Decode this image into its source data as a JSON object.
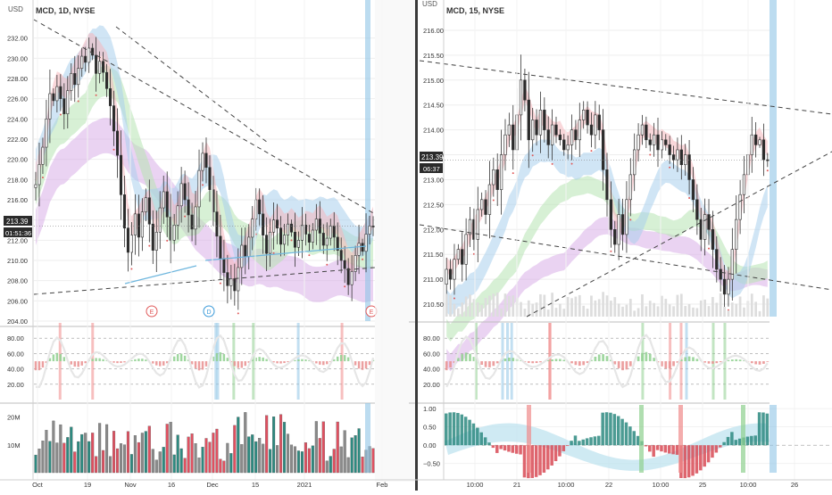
{
  "colors": {
    "background": "#ffffff",
    "divider": "#3a3a3a",
    "grid": "#eeeeee",
    "axis_text": "#333333",
    "price_label": "#2b2b2b",
    "price_label_text": "#ffffff",
    "bull": "#f4f4f4",
    "bear": "#2a2a2a",
    "band_blue": "#aad0ec",
    "band_green": "#b6e3b2",
    "band_purple": "#d8aee8",
    "band_pink": "#f4b6bc",
    "stoch_green": "#8fd08f",
    "stoch_red": "#e98f8f",
    "stoch_white": "#e6e6e6",
    "vol_gray": "#8a8a8a",
    "vol_teal": "#2d8a80",
    "vol_red": "#e05060",
    "ao_red": "#d84a55",
    "ao_teal": "#2d8a80",
    "ao_cloud": "#bfe3ef",
    "vbar_blue": "#8fc4e6",
    "vbar_red": "#f08a8a",
    "vbar_green": "#8fd08f",
    "trend_dash": "#444444",
    "support_line": "#6fb7de",
    "earnings_circle": "#e05a5a",
    "dividend_circle": "#3a9ad9"
  },
  "left_chart": {
    "title": "MCD, 1D, NYSE",
    "price_axis_unit": "USD",
    "price_label": "213.39",
    "countdown_label": "01:51:36",
    "event_markers": [
      {
        "label": "E",
        "kind": "earnings",
        "date_index": 38
      },
      {
        "label": "D",
        "kind": "dividend",
        "date_index": 61
      },
      {
        "label": "E",
        "kind": "earnings",
        "date_index": 110
      }
    ],
    "x_ticks": [
      "Oct",
      "19",
      "Nov",
      "16",
      "Dec",
      "15",
      "2021",
      "Feb"
    ],
    "volume_ticks": [
      "20M",
      "10M"
    ]
  },
  "right_chart": {
    "title": "MCD, 15, NYSE",
    "price_axis_unit": "USD",
    "price_label": "213.39",
    "countdown_label": "06:37",
    "x_ticks": [
      "10:00",
      "21",
      "10:00",
      "22",
      "10:00",
      "25",
      "10:00",
      "26"
    ],
    "ao_ticks": [
      "1.00",
      "0.50",
      "0.00",
      "−0.50"
    ]
  },
  "chart_data": [
    {
      "type": "candlestick",
      "title": "MCD, 1D, NYSE",
      "panel": "price",
      "ylim": [
        204,
        234
      ],
      "y_ticks": [
        204,
        206,
        208,
        210,
        212,
        214,
        216,
        218,
        220,
        222,
        224,
        226,
        228,
        230,
        232
      ],
      "x_ticks": [
        "Oct",
        "19",
        "Nov",
        "16",
        "Dec",
        "15",
        "2021",
        "Feb"
      ],
      "close": [
        217.5,
        219.5,
        221.2,
        224.0,
        226.5,
        225.8,
        227.2,
        226.0,
        224.5,
        226.8,
        228.5,
        227.4,
        229.0,
        230.2,
        229.6,
        231.0,
        230.3,
        228.5,
        229.7,
        228.6,
        227.0,
        225.3,
        222.8,
        220.4,
        216.5,
        213.2,
        210.8,
        212.5,
        214.6,
        212.3,
        214.8,
        216.2,
        213.6,
        211.0,
        212.8,
        215.2,
        216.8,
        214.3,
        212.0,
        213.5,
        215.4,
        217.6,
        216.0,
        214.5,
        213.1,
        215.3,
        218.9,
        220.6,
        219.2,
        217.0,
        214.8,
        212.4,
        210.2,
        208.8,
        207.5,
        208.2,
        207.0,
        209.3,
        211.5,
        210.4,
        212.3,
        214.1,
        216.0,
        214.6,
        212.5,
        210.7,
        212.8,
        214.0,
        213.2,
        211.6,
        212.5,
        213.6,
        212.8,
        211.3,
        212.0,
        213.5,
        212.6,
        211.8,
        213.0,
        214.1,
        212.7,
        211.5,
        212.2,
        213.4,
        212.3,
        211.0,
        210.0,
        209.2,
        207.6,
        208.9,
        210.5,
        211.7,
        210.9,
        212.6,
        213.4,
        213.39
      ],
      "ohlc_note": "Open values derived from previous close; highs/lows from visible wicks.",
      "volume": {
        "ylim": [
          0,
          25
        ],
        "unit": "M",
        "ticks": [
          10,
          20
        ]
      }
    },
    {
      "type": "line",
      "title": "MCD, 1D, NYSE",
      "panel": "stochastic",
      "ylim": [
        0,
        100
      ],
      "y_ticks": [
        20,
        40,
        60,
        80
      ],
      "reference_lines": [
        20,
        40,
        60,
        80
      ]
    },
    {
      "type": "candlestick",
      "title": "MCD, 15, NYSE",
      "panel": "price",
      "ylim": [
        210.25,
        216.25
      ],
      "y_ticks": [
        210.5,
        211.0,
        211.5,
        212.0,
        212.5,
        213.0,
        213.5,
        214.0,
        214.5,
        215.0,
        215.5,
        216.0
      ],
      "x_ticks": [
        "10:00",
        "21",
        "10:00",
        "22",
        "10:00",
        "25",
        "10:00",
        "26"
      ],
      "close": [
        211.2,
        211.0,
        211.4,
        211.6,
        211.3,
        211.9,
        212.2,
        211.8,
        212.4,
        212.6,
        212.3,
        212.9,
        213.2,
        212.8,
        213.5,
        213.9,
        214.1,
        213.6,
        214.3,
        215.0,
        214.6,
        213.8,
        214.2,
        213.9,
        214.4,
        214.0,
        213.7,
        214.1,
        213.9,
        213.8,
        213.6,
        213.7,
        214.0,
        213.8,
        214.2,
        214.4,
        214.1,
        213.9,
        214.3,
        214.0,
        213.2,
        212.6,
        212.0,
        211.7,
        212.3,
        211.9,
        212.6,
        213.1,
        213.6,
        213.9,
        214.1,
        213.8,
        213.7,
        213.9,
        213.6,
        213.8,
        213.7,
        213.5,
        213.4,
        213.6,
        213.3,
        213.5,
        213.0,
        212.6,
        212.2,
        211.8,
        212.3,
        212.0,
        211.6,
        211.2,
        211.0,
        210.7,
        211.0,
        211.6,
        212.2,
        212.7,
        213.1,
        213.5,
        213.9,
        213.7,
        213.8,
        213.4,
        213.39
      ],
      "volume": {
        "note": "volume bars along bottom of price pane"
      }
    },
    {
      "type": "line",
      "title": "MCD, 15, NYSE",
      "panel": "stochastic",
      "ylim": [
        0,
        100
      ],
      "y_ticks": [
        20,
        40,
        60,
        80
      ],
      "reference_lines": [
        20,
        40,
        60,
        80
      ]
    },
    {
      "type": "bar",
      "title": "MCD, 15, NYSE",
      "panel": "oscillator",
      "ylim": [
        -0.75,
        1.1
      ],
      "y_ticks": [
        -0.5,
        0.0,
        0.5,
        1.0
      ]
    }
  ]
}
